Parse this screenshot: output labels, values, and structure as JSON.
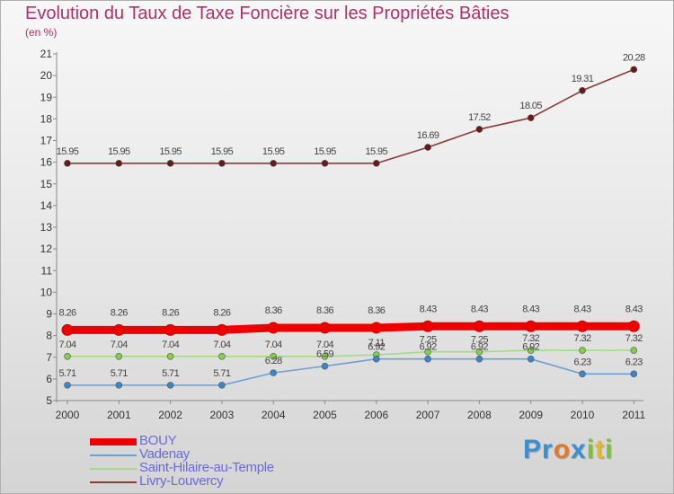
{
  "title": "Evolution du Taux de Taxe Foncière sur les Propriétés Bâties",
  "unit_label": "(en %)",
  "brand": {
    "letters": [
      {
        "char": "P",
        "color": "#3a8fd0"
      },
      {
        "char": "r",
        "color": "#3a8fd0"
      },
      {
        "char": "o",
        "color": "#e07a2a"
      },
      {
        "char": "x",
        "color": "#3a8fd0"
      },
      {
        "char": "i",
        "color": "#7cbf3a"
      },
      {
        "char": "t",
        "color": "#e6b82a"
      },
      {
        "char": "i",
        "color": "#7cbf3a"
      }
    ]
  },
  "chart_data": {
    "type": "line",
    "title": "Evolution du Taux de Taxe Foncière sur les Propriétés Bâties",
    "ylabel": "(en %)",
    "xlabel": "",
    "x": [
      "2000",
      "2001",
      "2002",
      "2003",
      "2004",
      "2005",
      "2006",
      "2007",
      "2008",
      "2009",
      "2010",
      "2011"
    ],
    "ylim": [
      5,
      21
    ],
    "yticks": [
      5,
      6,
      7,
      8,
      9,
      10,
      11,
      12,
      13,
      14,
      15,
      16,
      17,
      18,
      19,
      20,
      21
    ],
    "grid": false,
    "legend_position": "bottom-left",
    "series": [
      {
        "name": "BOUY",
        "color": "#ee0000",
        "values": [
          8.26,
          8.26,
          8.26,
          8.26,
          8.36,
          8.36,
          8.36,
          8.43,
          8.43,
          8.43,
          8.43,
          8.43
        ],
        "labels": [
          "8.26",
          "8.26",
          "8.26",
          "8.26",
          "8.36",
          "8.36",
          "8.36",
          "8.43",
          "8.43",
          "8.43",
          "8.43",
          "8.43"
        ]
      },
      {
        "name": "Vadenay",
        "color": "#6c9fcf",
        "marker_color": "#3c86c8",
        "values": [
          5.71,
          5.71,
          5.71,
          5.71,
          6.28,
          6.59,
          6.92,
          6.92,
          6.92,
          6.92,
          6.23,
          6.23
        ],
        "labels": [
          "5.71",
          "5.71",
          "5.71",
          "5.71",
          "6.28",
          "6.59",
          "6.92",
          "6.92",
          "6.92",
          "6.92",
          "6.23",
          "6.23"
        ]
      },
      {
        "name": "Saint-Hilaire-au-Temple",
        "color": "#a4dc82",
        "marker_color": "#7fd04a",
        "values": [
          7.04,
          7.04,
          7.04,
          7.04,
          7.04,
          7.04,
          7.11,
          7.25,
          7.25,
          7.32,
          7.32,
          7.32
        ],
        "labels": [
          "7.04",
          "7.04",
          "7.04",
          "7.04",
          "7.04",
          "7.04",
          "7.11",
          "7.25",
          "7.25",
          "7.32",
          "7.32",
          "7.32"
        ]
      },
      {
        "name": "Livry-Louvercy",
        "color": "#8a3a3a",
        "marker_color": "#6a1818",
        "values": [
          15.95,
          15.95,
          15.95,
          15.95,
          15.95,
          15.95,
          15.95,
          16.69,
          17.52,
          18.05,
          19.31,
          20.28
        ],
        "labels": [
          "15.95",
          "15.95",
          "15.95",
          "15.95",
          "15.95",
          "15.95",
          "15.95",
          "16.69",
          "17.52",
          "18.05",
          "19.31",
          "20.28"
        ]
      }
    ]
  }
}
